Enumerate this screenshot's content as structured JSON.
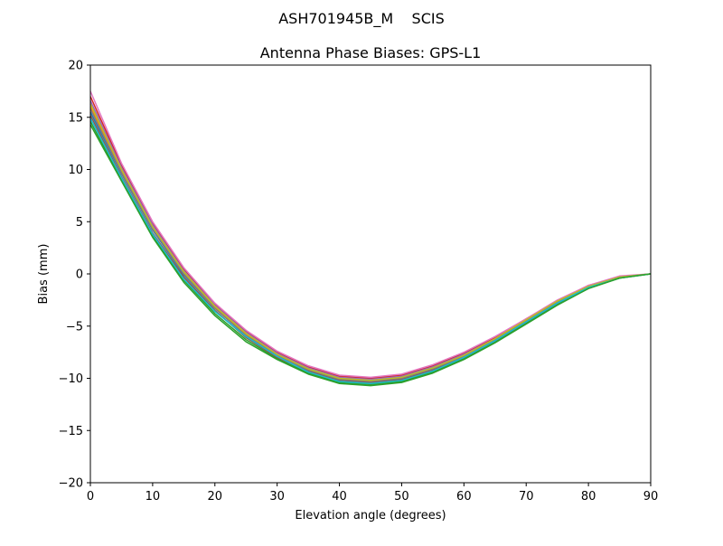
{
  "figure": {
    "suptitle": "ASH701945B_M    SCIS"
  },
  "chart_data": {
    "type": "line",
    "title": "Antenna Phase Biases: GPS-L1",
    "xlabel": "Elevation angle (degrees)",
    "ylabel": "Bias (mm)",
    "xlim": [
      0,
      90
    ],
    "ylim": [
      -20,
      20
    ],
    "xticks": [
      0,
      10,
      20,
      30,
      40,
      50,
      60,
      70,
      80,
      90
    ],
    "yticks": [
      -20,
      -15,
      -10,
      -5,
      0,
      5,
      10,
      15,
      20
    ],
    "ytick_labels": [
      "−20",
      "−15",
      "−10",
      "−5",
      "0",
      "5",
      "10",
      "15",
      "20"
    ],
    "grid": false,
    "legend": "none",
    "x": [
      0,
      5,
      10,
      15,
      20,
      25,
      30,
      35,
      40,
      45,
      50,
      55,
      60,
      65,
      70,
      75,
      80,
      85,
      90
    ],
    "series": [
      {
        "color": "#1f77b4",
        "values": [
          15.5,
          9.6,
          4.2,
          -0.1,
          -3.3,
          -5.9,
          -7.8,
          -9.2,
          -10.1,
          -10.3,
          -10.0,
          -9.1,
          -7.9,
          -6.3,
          -4.5,
          -2.7,
          -1.2,
          -0.3,
          0.0
        ]
      },
      {
        "color": "#ff7f0e",
        "values": [
          16.0,
          9.9,
          4.4,
          0.1,
          -3.2,
          -5.8,
          -7.8,
          -9.1,
          -10.0,
          -10.2,
          -9.9,
          -9.0,
          -7.8,
          -6.2,
          -4.4,
          -2.6,
          -1.2,
          -0.3,
          0.0
        ]
      },
      {
        "color": "#2ca02c",
        "values": [
          14.6,
          9.0,
          3.6,
          -0.6,
          -3.8,
          -6.3,
          -8.1,
          -9.5,
          -10.4,
          -10.6,
          -10.3,
          -9.4,
          -8.1,
          -6.5,
          -4.7,
          -2.9,
          -1.4,
          -0.4,
          0.0
        ]
      },
      {
        "color": "#d62728",
        "values": [
          17.0,
          10.4,
          4.9,
          0.5,
          -2.9,
          -5.5,
          -7.5,
          -8.9,
          -9.8,
          -10.0,
          -9.7,
          -8.8,
          -7.6,
          -6.1,
          -4.3,
          -2.6,
          -1.1,
          -0.3,
          0.0
        ]
      },
      {
        "color": "#9467bd",
        "values": [
          16.6,
          10.2,
          4.7,
          0.3,
          -3.0,
          -5.6,
          -7.6,
          -9.0,
          -9.9,
          -10.1,
          -9.8,
          -8.9,
          -7.7,
          -6.2,
          -4.4,
          -2.6,
          -1.2,
          -0.3,
          0.0
        ]
      },
      {
        "color": "#8c564b",
        "values": [
          15.2,
          9.3,
          3.9,
          -0.3,
          -3.5,
          -6.1,
          -8.0,
          -9.3,
          -10.2,
          -10.4,
          -10.1,
          -9.2,
          -8.0,
          -6.4,
          -4.6,
          -2.8,
          -1.3,
          -0.3,
          0.0
        ]
      },
      {
        "color": "#e377c2",
        "values": [
          17.5,
          10.6,
          5.0,
          0.6,
          -2.8,
          -5.4,
          -7.4,
          -8.8,
          -9.7,
          -9.9,
          -9.6,
          -8.7,
          -7.5,
          -6.0,
          -4.3,
          -2.5,
          -1.1,
          -0.2,
          0.0
        ]
      },
      {
        "color": "#7f7f7f",
        "values": [
          15.8,
          9.7,
          4.3,
          0.0,
          -3.3,
          -5.9,
          -7.8,
          -9.2,
          -10.1,
          -10.3,
          -10.0,
          -9.1,
          -7.9,
          -6.3,
          -4.5,
          -2.7,
          -1.2,
          -0.3,
          0.0
        ]
      },
      {
        "color": "#bcbd22",
        "values": [
          16.3,
          10.0,
          4.5,
          0.2,
          -3.1,
          -5.7,
          -7.7,
          -9.1,
          -10.0,
          -10.2,
          -9.9,
          -9.0,
          -7.8,
          -6.2,
          -4.4,
          -2.6,
          -1.2,
          -0.3,
          0.0
        ]
      },
      {
        "color": "#17becf",
        "values": [
          14.9,
          9.2,
          3.8,
          -0.5,
          -3.6,
          -6.0,
          -7.9,
          -9.4,
          -10.3,
          -10.5,
          -10.2,
          -9.3,
          -8.0,
          -6.4,
          -4.6,
          -2.8,
          -1.3,
          -0.4,
          0.0
        ]
      },
      {
        "color": "#2ca02c",
        "values": [
          14.3,
          8.9,
          3.5,
          -0.8,
          -4.0,
          -6.5,
          -8.2,
          -9.6,
          -10.5,
          -10.7,
          -10.4,
          -9.5,
          -8.2,
          -6.6,
          -4.8,
          -3.0,
          -1.4,
          -0.4,
          0.0
        ]
      }
    ]
  }
}
